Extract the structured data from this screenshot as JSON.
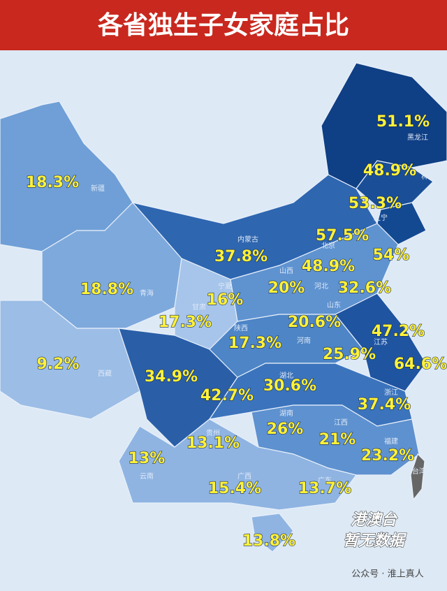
{
  "map": {
    "title": "各省独生子女家庭占比",
    "regions": [
      {
        "name": "黑龙江",
        "label": "51.1%"
      },
      {
        "name": "林",
        "label": "48.9%"
      },
      {
        "name": "辽宁",
        "label": "53.3%"
      },
      {
        "name": "北京",
        "label": "57.5%"
      },
      {
        "label": "54%"
      },
      {
        "name": "内蒙古",
        "label": "37.8%"
      },
      {
        "name": "山西",
        "label": "48.9%"
      },
      {
        "name": "河北",
        "label": "20%"
      },
      {
        "name": "山东",
        "label": "32.6%"
      },
      {
        "name": "新疆",
        "label": "18.3%"
      },
      {
        "name": "青海",
        "label": "18.8%"
      },
      {
        "name": "宁夏",
        "label": "16%"
      },
      {
        "name": "甘肃",
        "label": "17.3%"
      },
      {
        "name": "陕西",
        "label": "20.6%"
      },
      {
        "name": "河南",
        "label": "17.3%"
      },
      {
        "name": "江苏",
        "label": "47.2%"
      },
      {
        "label": "25.9%"
      },
      {
        "label": "64.6%"
      },
      {
        "name": "西藏",
        "label": "9.2%"
      },
      {
        "label": "34.9%"
      },
      {
        "name": "湖北",
        "label": "30.6%"
      },
      {
        "label": "42.7%"
      },
      {
        "name": "浙江",
        "label": "37.4%"
      },
      {
        "name": "湖南",
        "label": "26%"
      },
      {
        "name": "江西",
        "label": "21%"
      },
      {
        "name": "福建",
        "label": "23.2%"
      },
      {
        "name": "贵州",
        "label": "13.1%"
      },
      {
        "name": "云南",
        "label": "13%"
      },
      {
        "name": "广西",
        "label": "15.4%"
      },
      {
        "name": "广东",
        "label": "13.7%"
      },
      {
        "name": "台湾"
      },
      {
        "label": "13.8%"
      }
    ],
    "note": [
      "港澳台",
      "暂无数据"
    ],
    "watermark": "公众号 · 淮上真人"
  }
}
